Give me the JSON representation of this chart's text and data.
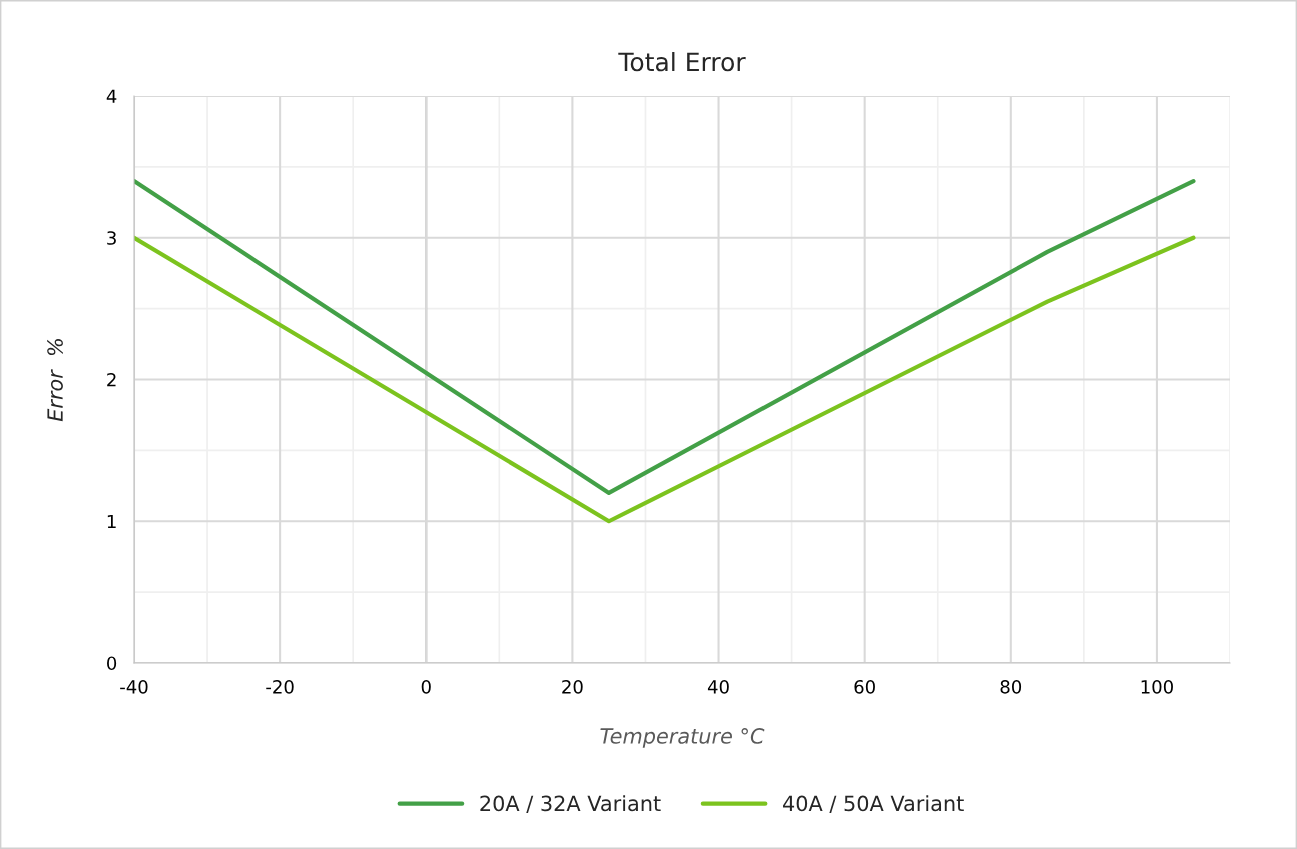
{
  "chart_data": {
    "type": "line",
    "title": "Total Error",
    "xlabel": "Temperature °C",
    "ylabel": "Error  %",
    "xlim": [
      -40,
      110
    ],
    "xticks": [
      -40,
      -20,
      0,
      20,
      40,
      60,
      80,
      100
    ],
    "ylim": [
      0,
      4
    ],
    "yticks": [
      0,
      1,
      2,
      3,
      4
    ],
    "grid": true,
    "legend": "bottom",
    "marker": "none",
    "line_style": "solid",
    "series": [
      {
        "name": "20A / 32A Variant",
        "color": "#43a047",
        "x": [
          -40,
          25,
          85,
          105
        ],
        "values": [
          3.4,
          1.2,
          2.9,
          3.4
        ]
      },
      {
        "name": "40A / 50A Variant",
        "color": "#7cc31e",
        "x": [
          -40,
          25,
          85,
          105
        ],
        "values": [
          3.0,
          1.0,
          2.55,
          3.0
        ]
      }
    ]
  }
}
